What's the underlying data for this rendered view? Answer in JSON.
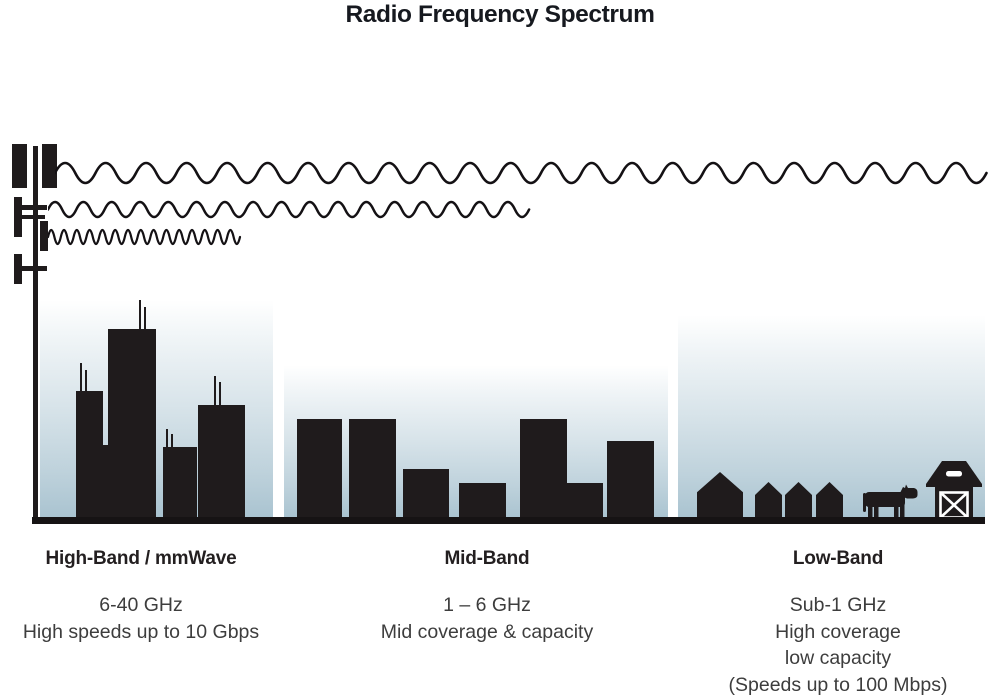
{
  "title": "Radio Frequency Spectrum",
  "tower": {
    "name": "cell-tower"
  },
  "waves": {
    "low_band_wave": "long-wavelength-wave",
    "mid_band_wave": "medium-wavelength-wave",
    "high_band_wave": "short-wavelength-wave"
  },
  "bands": [
    {
      "id": "high",
      "label": "High-Band / mmWave",
      "lines": [
        "6-40 GHz",
        "High speeds up to 10 Gbps"
      ],
      "scene": "city-skyscrapers"
    },
    {
      "id": "mid",
      "label": "Mid-Band",
      "lines": [
        "1 – 6 GHz",
        "Mid coverage & capacity"
      ],
      "scene": "mid-rise-buildings"
    },
    {
      "id": "low",
      "label": "Low-Band",
      "lines": [
        "Sub-1 GHz",
        "High coverage",
        "low capacity",
        "(Speeds up to 100 Mbps)"
      ],
      "scene": "rural-houses-farm"
    }
  ],
  "colors": {
    "ink": "#231f20",
    "silhouette": "#1f1b1c",
    "panel_bottom": "#a9c3d0",
    "text": "#3d3d3d"
  }
}
